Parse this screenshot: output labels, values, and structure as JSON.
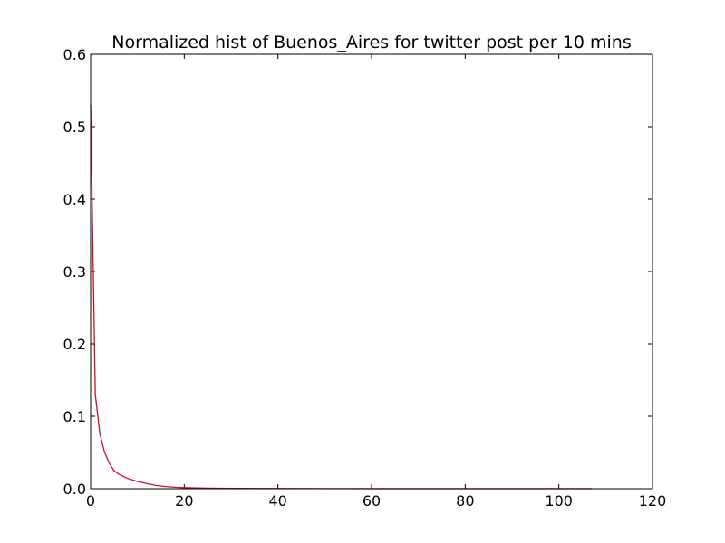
{
  "chart_data": {
    "type": "line",
    "title": "Normalized hist of Buenos_Aires for twitter post per 10 mins",
    "xlabel": "",
    "ylabel": "",
    "xlim": [
      0,
      120
    ],
    "ylim": [
      0,
      0.6
    ],
    "x_ticks": [
      "0",
      "20",
      "40",
      "60",
      "80",
      "100",
      "120"
    ],
    "y_ticks": [
      "0.0",
      "0.1",
      "0.2",
      "0.3",
      "0.4",
      "0.5",
      "0.6"
    ],
    "grid": false,
    "line_color": "#c8102e",
    "series": [
      {
        "x": [
          0,
          1,
          2,
          3,
          4,
          5,
          6,
          7,
          8,
          10,
          12,
          14,
          16,
          18,
          20,
          25,
          30,
          40,
          50,
          60,
          70,
          80,
          90,
          100,
          107
        ],
        "values": [
          0.53,
          0.13,
          0.075,
          0.05,
          0.035,
          0.025,
          0.02,
          0.017,
          0.014,
          0.01,
          0.007,
          0.0045,
          0.003,
          0.002,
          0.0015,
          0.0008,
          0.0005,
          0.0003,
          0.0002,
          0.0001,
          0.0001,
          0.0001,
          0.0001,
          0.0001,
          0.0001
        ]
      }
    ]
  }
}
